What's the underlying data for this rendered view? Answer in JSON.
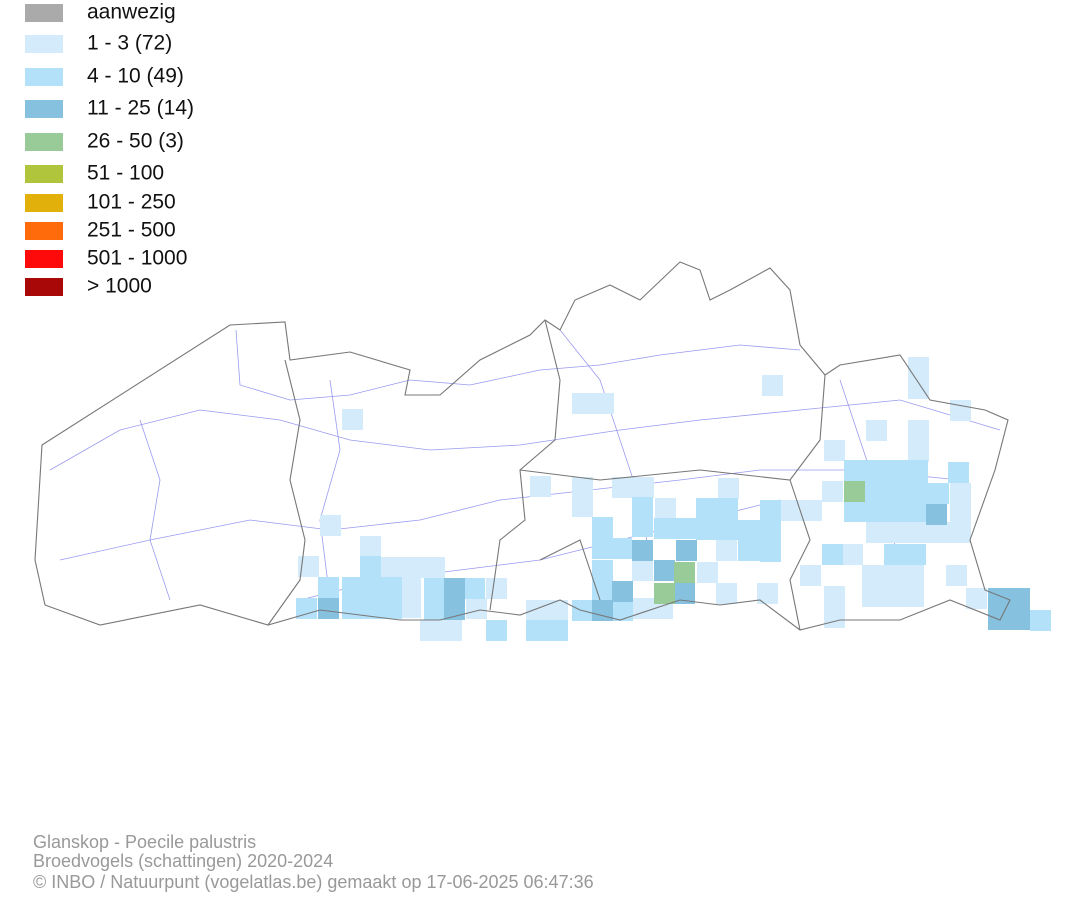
{
  "legend": {
    "items": [
      {
        "label": "aanwezig",
        "color": "#aaaaaa"
      },
      {
        "label": "1 - 3 (72)",
        "color": "#d4ebfb"
      },
      {
        "label": "4 - 10 (49)",
        "color": "#b3e1f9"
      },
      {
        "label": "11 - 25 (14)",
        "color": "#86c2e0"
      },
      {
        "label": "26 - 50 (3)",
        "color": "#98cb98"
      },
      {
        "label": "51 - 100",
        "color": "#b0c43c"
      },
      {
        "label": "101 - 250",
        "color": "#e2b00a"
      },
      {
        "label": "251 - 500",
        "color": "#ff6a0a"
      },
      {
        "label": "501 - 1000",
        "color": "#ff0a0a"
      },
      {
        "label": "> 1000",
        "color": "#a80808"
      }
    ]
  },
  "footer": {
    "lines": [
      "Glanskop - Poecile palustris",
      "Broedvogels (schattingen) 2020-2024",
      "© INBO / Natuurpunt (vogelatlas.be) gemaakt op 17-06-2025 06:47:36"
    ]
  }
}
